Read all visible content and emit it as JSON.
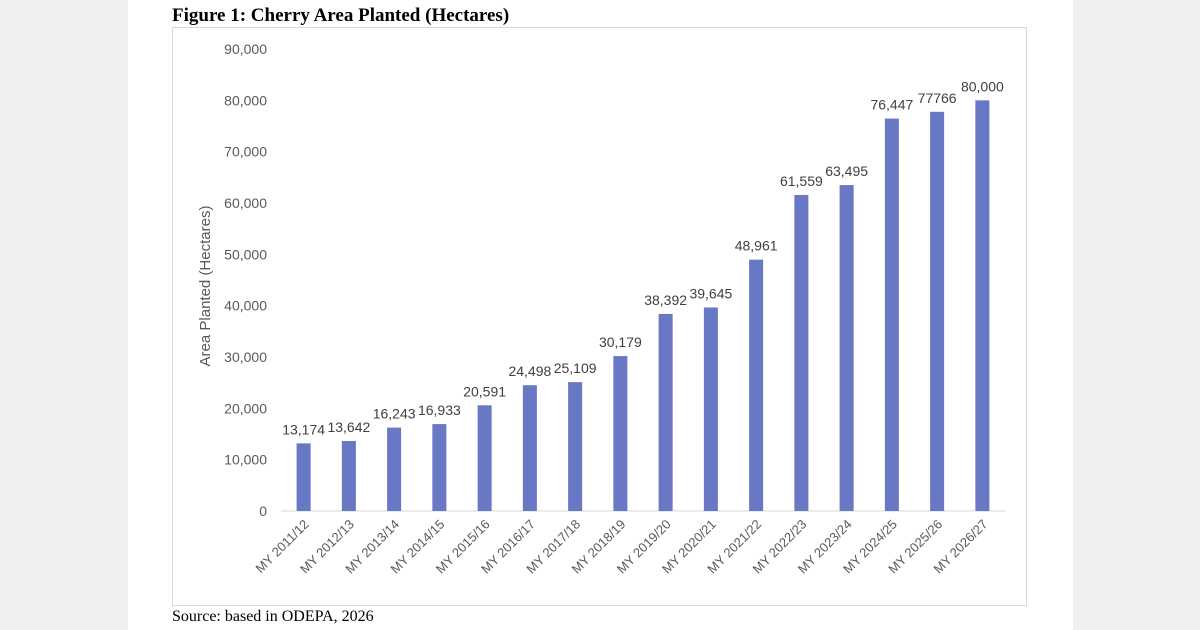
{
  "figure": {
    "title": "Figure 1: Cherry Area Planted (Hectares)",
    "source": "Source: based in ODEPA, 2026"
  },
  "colors": {
    "bar": "#6878c4",
    "axis_text": "#595959",
    "baseline": "#d9d9d9"
  },
  "chart_data": {
    "type": "bar",
    "title": "Figure 1: Cherry Area Planted (Hectares)",
    "xlabel": "",
    "ylabel": "Area Planted (Hectares)",
    "ylim": [
      0,
      90000
    ],
    "yticks": [
      0,
      10000,
      20000,
      30000,
      40000,
      50000,
      60000,
      70000,
      80000,
      90000
    ],
    "ytick_labels": [
      "0",
      "10,000",
      "20,000",
      "30,000",
      "40,000",
      "50,000",
      "60,000",
      "70,000",
      "80,000",
      "90,000"
    ],
    "grid": false,
    "legend": "none",
    "categories": [
      "MY 2011/12",
      "MY 2012/13",
      "MY 2013/14",
      "MY 2014/15",
      "MY 2015/16",
      "MY 2016/17",
      "MY 2017/18",
      "MY 2018/19",
      "MY 2019/20",
      "MY 2020/21",
      "MY 2021/22",
      "MY 2022/23",
      "MY 2023/24",
      "MY 2024/25",
      "MY 2025/26",
      "MY 2026/27"
    ],
    "values": [
      13174,
      13642,
      16243,
      16933,
      20591,
      24498,
      25109,
      30179,
      38392,
      39645,
      48961,
      61559,
      63495,
      76447,
      77766,
      80000
    ],
    "data_labels": [
      "13,174",
      "13,642",
      "16,243",
      "16,933",
      "20,591",
      "24,498",
      "25,109",
      "30,179",
      "38,392",
      "39,645",
      "48,961",
      "61,559",
      "63,495",
      "76,447",
      "77766",
      "80,000"
    ]
  }
}
